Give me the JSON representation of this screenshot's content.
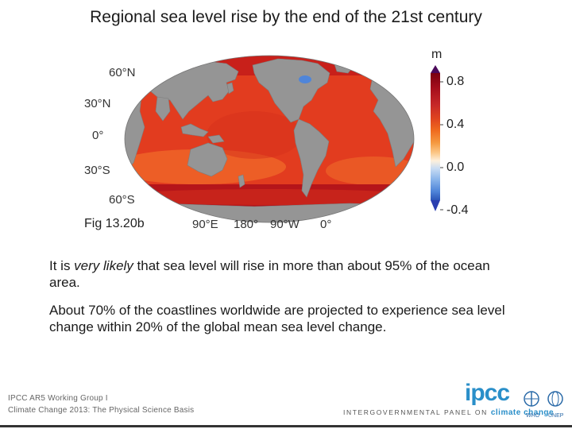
{
  "title": "Regional sea level rise by the end of the 21st century",
  "map": {
    "figure_label": "Fig 13.20b",
    "lat_labels": [
      "60°N",
      "30°N",
      "0°",
      "30°S",
      "60°S"
    ],
    "lon_labels": [
      "90°E",
      "180°",
      "90°W",
      "0°"
    ],
    "colorbar": {
      "unit": "m",
      "ticks": [
        "0.8",
        "0.4",
        "0.0",
        "-0.4"
      ],
      "colors": [
        "#7a0011",
        "#a60f1c",
        "#c62828",
        "#e0451f",
        "#ef6a1e",
        "#f59a40",
        "#fcc98a",
        "#fdf0dc",
        "#c9dcf3",
        "#88b3ea",
        "#4f85d9",
        "#2b55b8"
      ],
      "range": [
        -0.4,
        0.8
      ]
    },
    "colors": {
      "ocean": "#e23c1f",
      "ocean_high": "#c8201a",
      "ocean_low": "#f06a2a",
      "land": "#959595",
      "southern": "#b5151a"
    }
  },
  "text": {
    "p1_pre": "It is ",
    "p1_em": "very likely",
    "p1_post": " that sea level will rise in more than about 95% of the ocean area.",
    "p2": "About 70% of the coastlines worldwide are projected to experience sea level change within 20% of the global mean sea level change."
  },
  "footer": {
    "line1": "IPCC AR5 Working Group I",
    "line2": "Climate Change 2013: The Physical Science Basis",
    "logo": "ipcc",
    "panel_pre": "INTERGOVERNMENTAL PANEL ON",
    "panel_em": "climate change",
    "org1": "WHO",
    "org2": "UNEP"
  }
}
